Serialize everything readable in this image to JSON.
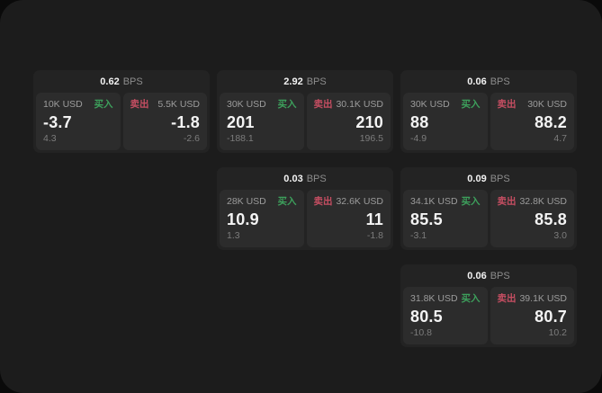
{
  "labels": {
    "bps_suffix": "BPS",
    "buy": "买入",
    "sell": "卖出"
  },
  "colors": {
    "buy_green": "#3da05c",
    "sell_red": "#c64e62",
    "page_background": "#1c1c1c",
    "card_background": "#232323",
    "panel_background": "#2c2c2c"
  },
  "cards": [
    {
      "bps": "0.62",
      "buy": {
        "amount": "10K USD",
        "value": "-3.7",
        "sub": "4.3"
      },
      "sell": {
        "amount": "5.5K USD",
        "value": "-1.8",
        "sub": "-2.6"
      }
    },
    {
      "bps": "2.92",
      "buy": {
        "amount": "30K USD",
        "value": "201",
        "sub": "-188.1"
      },
      "sell": {
        "amount": "30.1K USD",
        "value": "210",
        "sub": "196.5"
      }
    },
    {
      "bps": "0.06",
      "buy": {
        "amount": "30K USD",
        "value": "88",
        "sub": "-4.9"
      },
      "sell": {
        "amount": "30K USD",
        "value": "88.2",
        "sub": "4.7"
      }
    },
    {
      "bps": "0.03",
      "buy": {
        "amount": "28K USD",
        "value": "10.9",
        "sub": "1.3"
      },
      "sell": {
        "amount": "32.6K USD",
        "value": "11",
        "sub": "-1.8"
      }
    },
    {
      "bps": "0.09",
      "buy": {
        "amount": "34.1K USD",
        "value": "85.5",
        "sub": "-3.1"
      },
      "sell": {
        "amount": "32.8K USD",
        "value": "85.8",
        "sub": "3.0"
      }
    },
    {
      "bps": "0.06",
      "buy": {
        "amount": "31.8K USD",
        "value": "80.5",
        "sub": "-10.8"
      },
      "sell": {
        "amount": "39.1K USD",
        "value": "80.7",
        "sub": "10.2"
      }
    }
  ]
}
